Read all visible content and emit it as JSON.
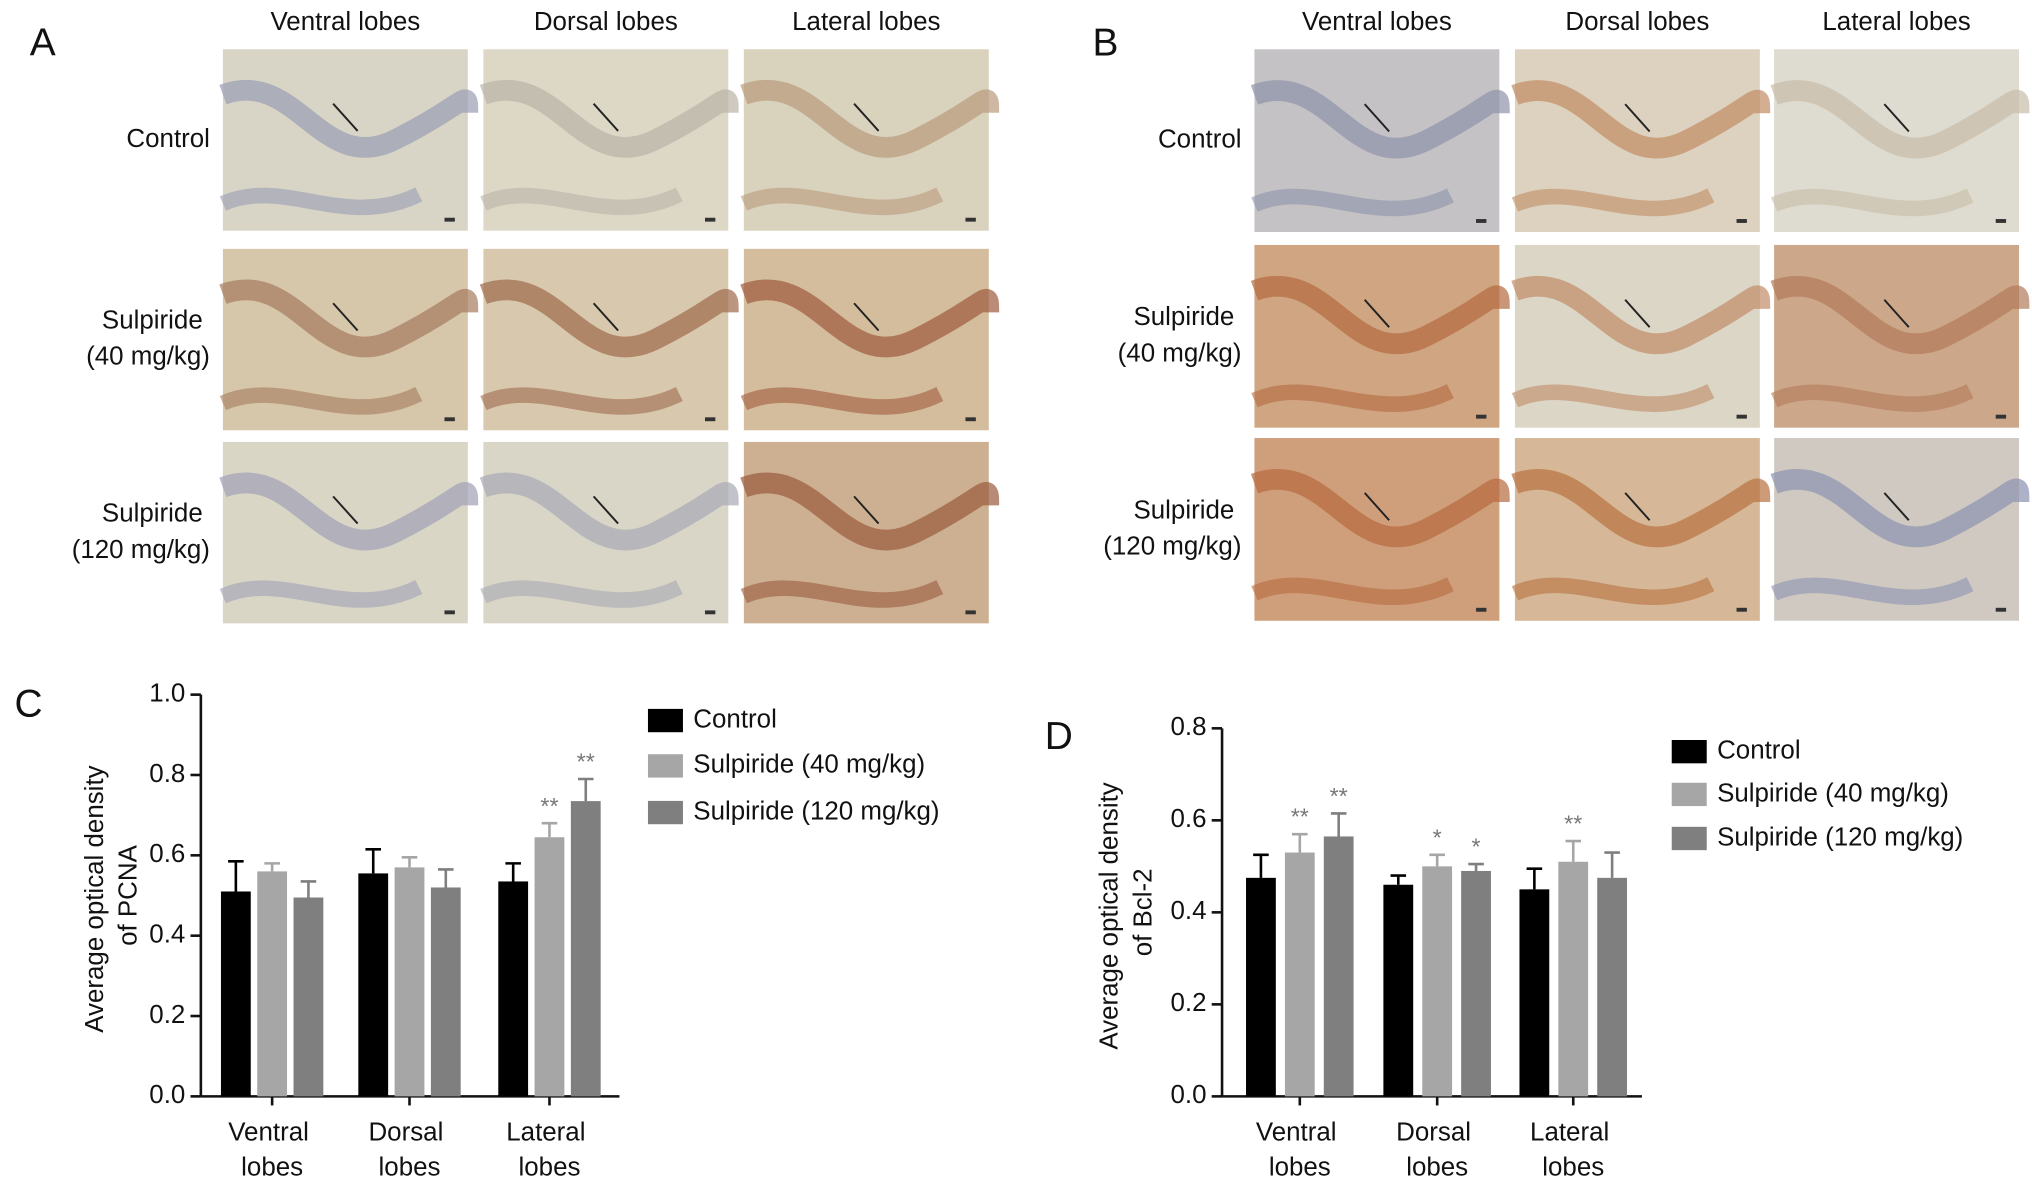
{
  "panels": [
    {
      "label": "A",
      "columns": [
        "Ventral lobes",
        "Dorsal lobes",
        "Lateral lobes"
      ],
      "rows": [
        "Control",
        "Sulpiride (40 mg/kg)",
        "Sulpiride (120 mg/kg)"
      ]
    },
    {
      "label": "B",
      "columns": [
        "Ventral lobes",
        "Dorsal lobes",
        "Lateral lobes"
      ],
      "rows": [
        "Control",
        "Sulpiride (40 mg/kg)",
        "Sulpiride (120 mg/kg)"
      ]
    }
  ],
  "chart_data": [
    {
      "type": "bar",
      "panel_label": "C",
      "y_label": "Average optical density of PCNA",
      "categories": [
        "Ventral lobes",
        "Dorsal lobes",
        "Lateral lobes"
      ],
      "series": [
        {
          "name": "Control",
          "color": "#000000",
          "values": [
            0.51,
            0.555,
            0.535
          ],
          "errors": [
            0.075,
            0.06,
            0.045
          ],
          "annotations": [
            null,
            null,
            null
          ]
        },
        {
          "name": "Sulpiride (40 mg/kg)",
          "color": "#a6a6a6",
          "values": [
            0.56,
            0.57,
            0.645
          ],
          "errors": [
            0.02,
            0.025,
            0.035
          ],
          "annotations": [
            null,
            null,
            "**"
          ]
        },
        {
          "name": "Sulpiride (120 mg/kg)",
          "color": "#7f7f7f",
          "values": [
            0.495,
            0.52,
            0.735
          ],
          "errors": [
            0.04,
            0.045,
            0.055
          ],
          "annotations": [
            null,
            null,
            "**"
          ]
        }
      ],
      "ylim": [
        0,
        1.0
      ],
      "yticks": [
        {
          "value": 0,
          "label": "0.0"
        },
        0.2,
        0.4,
        0.6,
        0.8,
        {
          "value": 1.0,
          "label": "1.0"
        }
      ]
    },
    {
      "type": "bar",
      "panel_label": "D",
      "y_label": "Average optical density of Bcl-2",
      "categories": [
        "Ventral lobes",
        "Dorsal lobes",
        "Lateral lobes"
      ],
      "series": [
        {
          "name": "Control",
          "color": "#000000",
          "values": [
            0.475,
            0.46,
            0.45
          ],
          "errors": [
            0.05,
            0.02,
            0.045
          ],
          "annotations": [
            null,
            null,
            null
          ]
        },
        {
          "name": "Sulpiride (40 mg/kg)",
          "color": "#a6a6a6",
          "values": [
            0.53,
            0.5,
            0.51
          ],
          "errors": [
            0.04,
            0.025,
            0.045
          ],
          "annotations": [
            "**",
            "*",
            "**"
          ]
        },
        {
          "name": "Sulpiride (120 mg/kg)",
          "color": "#7f7f7f",
          "values": [
            0.565,
            0.49,
            0.475
          ],
          "errors": [
            0.05,
            0.015,
            0.055
          ],
          "annotations": [
            "**",
            "*",
            null
          ]
        }
      ],
      "ylim": [
        0,
        0.8
      ],
      "yticks": [
        {
          "value": 0,
          "label": "0.0"
        },
        0.2,
        0.4,
        0.6,
        0.8
      ]
    }
  ]
}
